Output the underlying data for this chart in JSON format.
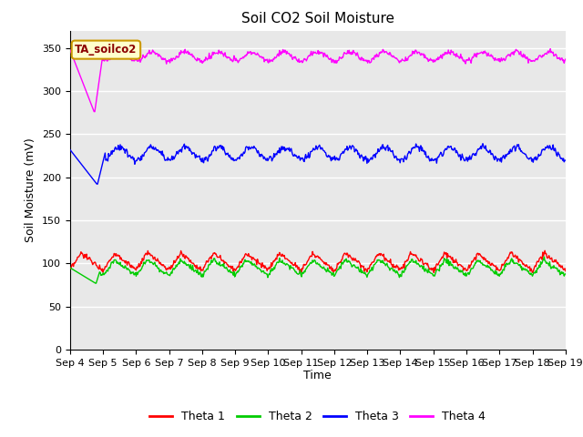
{
  "title": "Soil CO2 Soil Moisture",
  "ylabel": "Soil Moisture (mV)",
  "xlabel": "Time",
  "annotation_text": "TA_soilco2",
  "annotation_box_color": "#ffffcc",
  "annotation_box_edge": "#cc9900",
  "ylim": [
    0,
    370
  ],
  "yticks": [
    0,
    50,
    100,
    150,
    200,
    250,
    300,
    350
  ],
  "x_labels": [
    "Sep 4",
    "Sep 5",
    "Sep 6",
    "Sep 7",
    "Sep 8",
    "Sep 9",
    "Sep 10",
    "Sep 11",
    "Sep 12",
    "Sep 13",
    "Sep 14",
    "Sep 15",
    "Sep 16",
    "Sep 17",
    "Sep 18",
    "Sep 19"
  ],
  "background_color": "#e8e8e8",
  "grid_color": "#ffffff",
  "legend": [
    {
      "label": "Theta 1",
      "color": "#ff0000"
    },
    {
      "label": "Theta 2",
      "color": "#00cc00"
    },
    {
      "label": "Theta 3",
      "color": "#0000ff"
    },
    {
      "label": "Theta 4",
      "color": "#ff00ff"
    }
  ],
  "num_days": 15,
  "samples_per_day": 48
}
